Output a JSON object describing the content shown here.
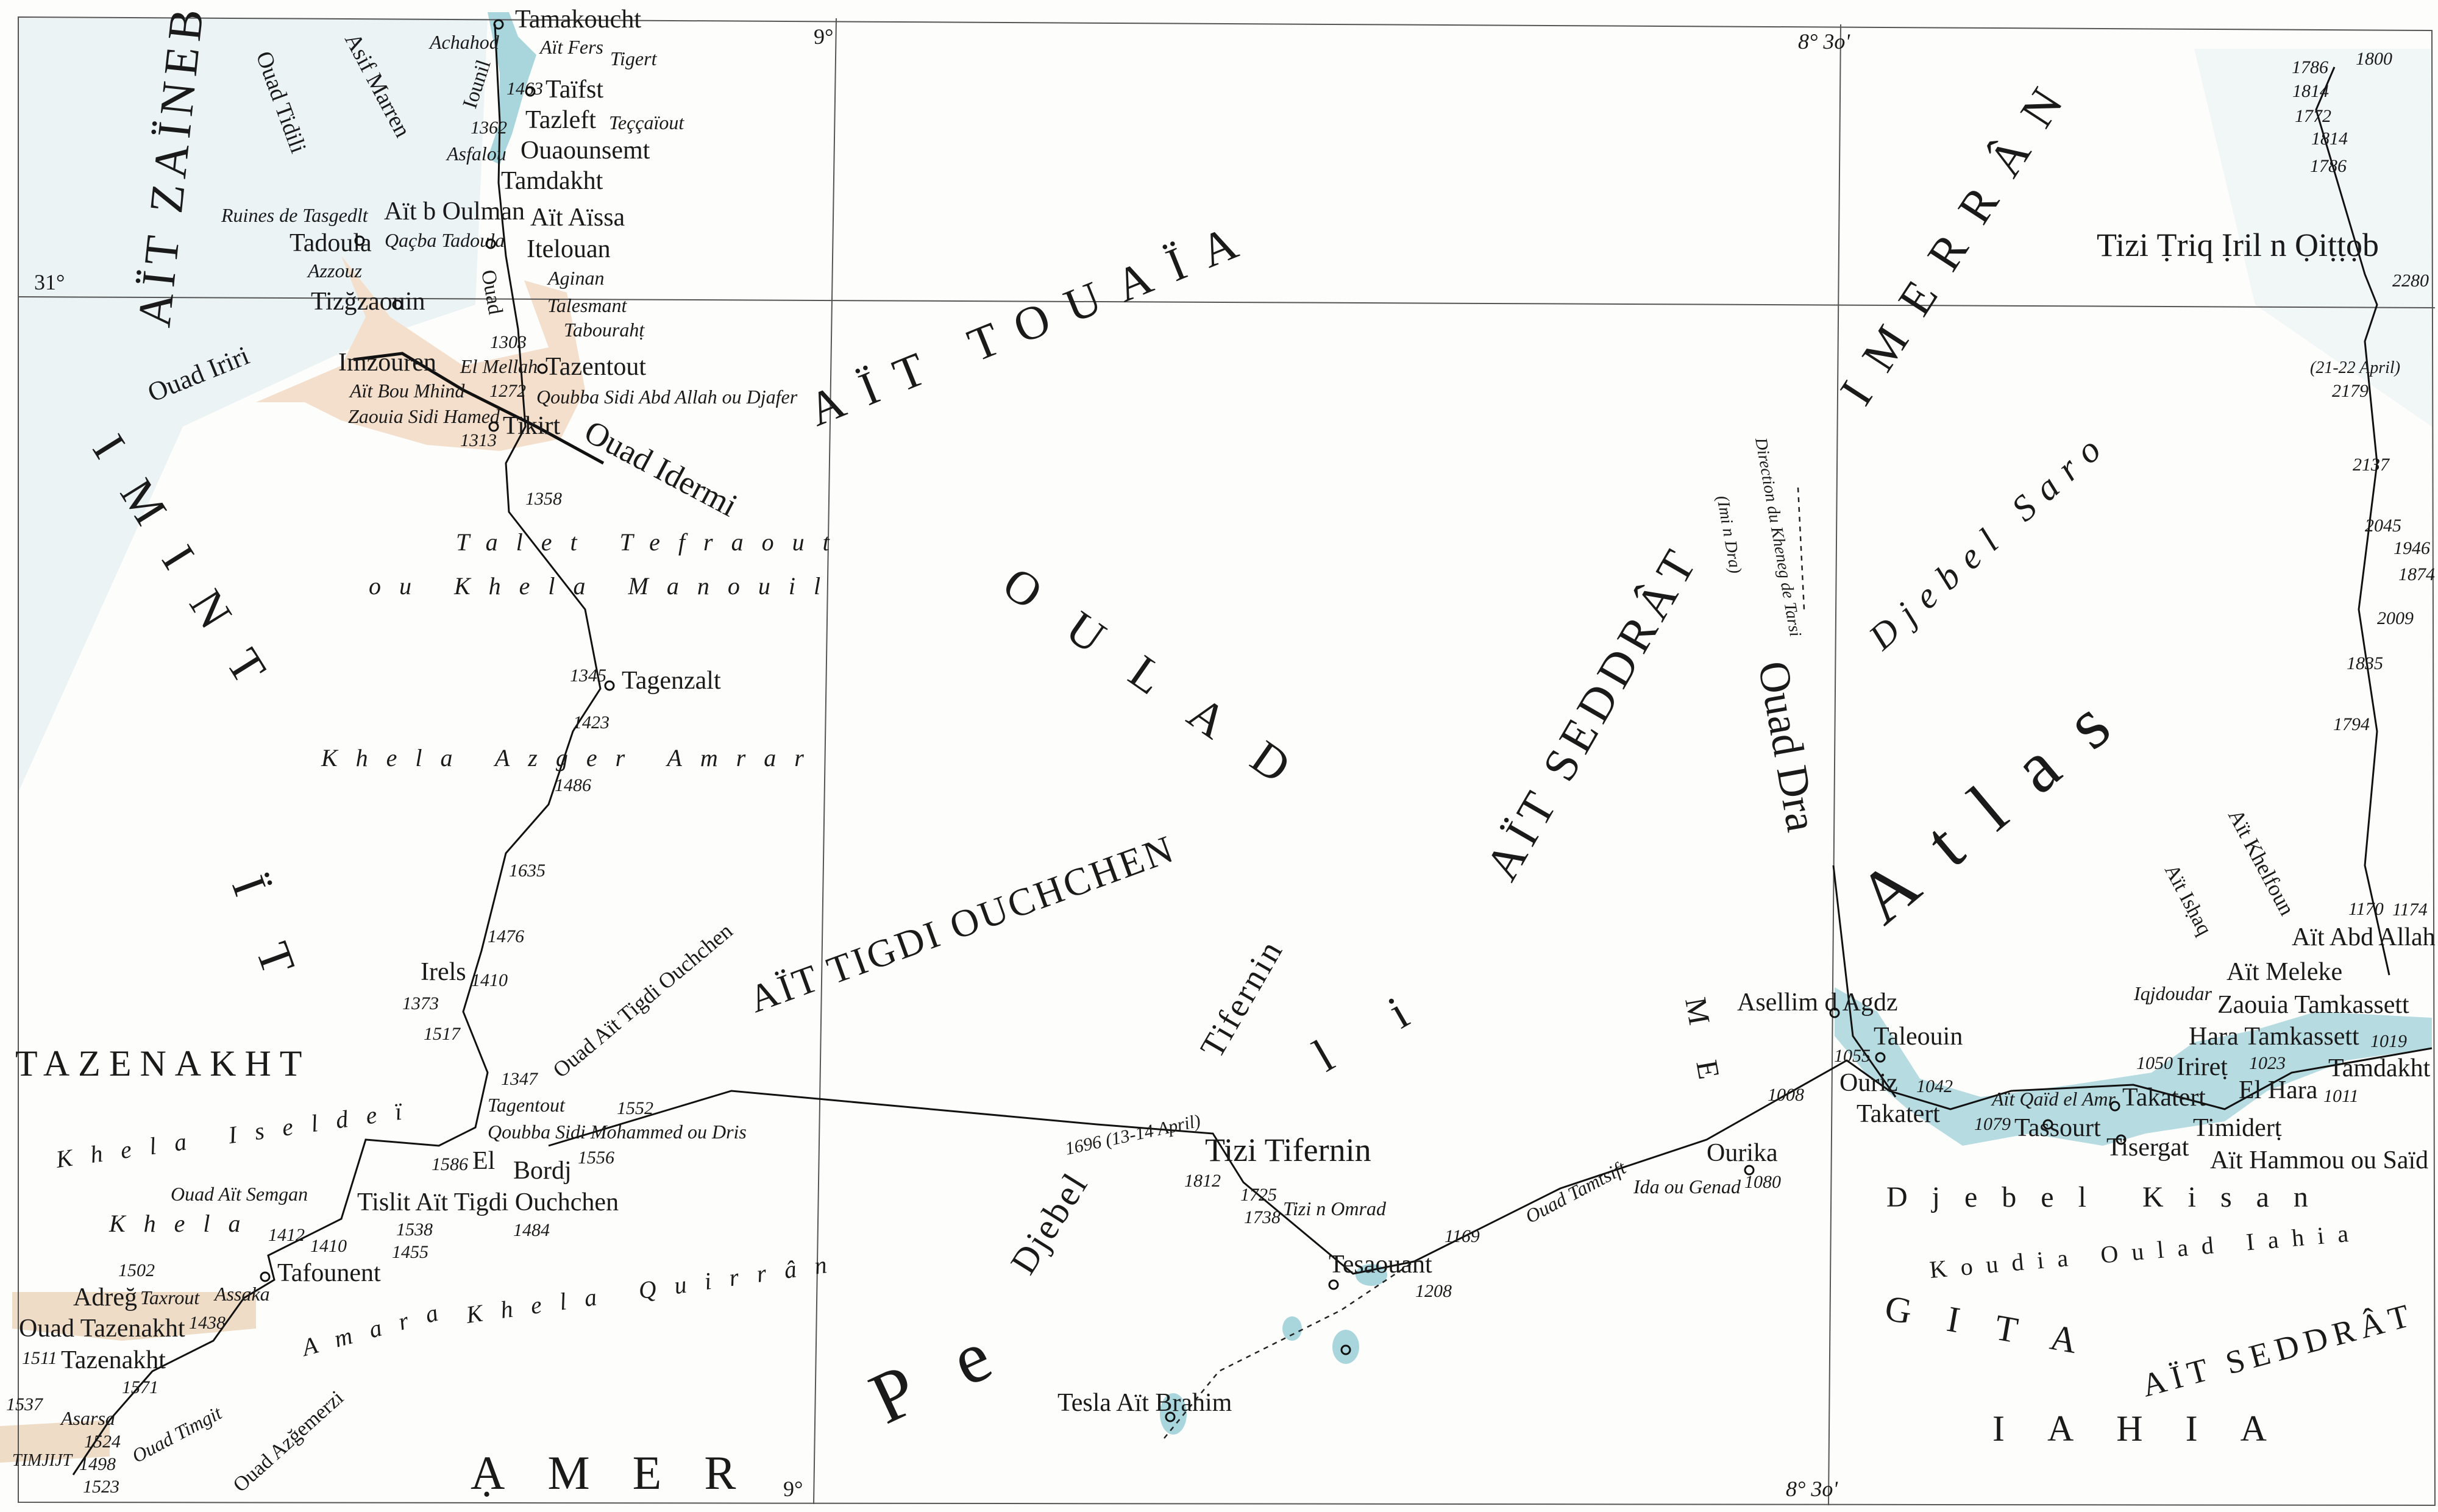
{
  "colors": {
    "paper": "#fdfdfb",
    "ink": "#1a1a1a",
    "water": "#a9d6dd",
    "highland_shade": "#e6f0f4",
    "cultivated": "#f3dfcb",
    "grid": "#555555"
  },
  "grid_labels": [
    "31°",
    "9°",
    "9°",
    "8° 3o'",
    "8° 3o'"
  ],
  "places": [
    "Tamakoucht",
    "Taïfst",
    "Tazleft",
    "Ouaounsemt",
    "Tamdakht",
    "Aït b Oulman",
    "Aït Aïssa",
    "Itelouan",
    "Tadoula",
    "Tizğzaouin",
    "Imzouren",
    "Tazentout",
    "Tikirt",
    "Tagenzalt",
    "Irels",
    "Bordj",
    "El",
    "Tislit Aït Tigdi Ouchchen",
    "Tafounent",
    "Adreğ",
    "Ouad Tazenakht",
    "Tazenakht",
    "Tizi Tifernin",
    "Tesaouant",
    "Tesla Aït Brahim",
    "Ourika",
    "Asellim d Agdz",
    "Taleouin",
    "Ouriz",
    "Takatert",
    "Takatert",
    "Tassourt",
    "Tisergat",
    "Timiderṭ",
    "Irireṭ",
    "El Hara",
    "Aït Hammou ou Saïd",
    "Hara Tamkassett",
    "Zaouia Tamkassett",
    "Aït Meleke",
    "Aït Abd Allah",
    "Tamdakht",
    "Tizi Ṭriq Ịril n Ọiṭṭọb",
    "TIMJIJT"
  ],
  "minor_places": [
    "Aït Fers",
    "Tigert",
    "Teççaïout",
    "Asfalou",
    "Ruines de Tasgedlt",
    "Qaçba Tadoula",
    "Azzouz",
    "Aginan",
    "Talesmant",
    "Tabourahṭ",
    "Qoubba Sidi Abd Allah ou Djafer",
    "Aït Bou Mhind",
    "El Mellah",
    "Zaouia Sidi Hamed",
    "Achahod",
    "Qoubba Sidi Mohammed ou Dris",
    "Tagentout",
    "Ouad Aït Semgan",
    "Taxrout",
    "Assaka",
    "Asarsa",
    "Tizi n Omrad",
    "Ida ou Genad",
    "Aït Qaïd el Amr",
    "Iqjdoudar",
    "(21-22 April)"
  ],
  "elevations": [
    "1463",
    "1362",
    "1303",
    "1272",
    "1313",
    "1358",
    "1345",
    "1423",
    "1486",
    "1635",
    "1476",
    "1410",
    "1373",
    "1517",
    "1347",
    "1552",
    "1556",
    "1484",
    "1586",
    "1538",
    "1455",
    "1412",
    "1410",
    "1502",
    "1438",
    "1511",
    "1571",
    "1537",
    "1524",
    "1498",
    "1523",
    "1696 (13-14 April)",
    "1812",
    "1725",
    "1738",
    "1208",
    "1169",
    "1080",
    "1008",
    "1055",
    "1042",
    "1079",
    "1050",
    "1023",
    "1011",
    "1019",
    "1800",
    "1786",
    "1814",
    "1772",
    "1814",
    "1786",
    "2280",
    "2179",
    "2137",
    "2045",
    "1946",
    "1874",
    "2009",
    "1835",
    "1794",
    "1174",
    "1170"
  ],
  "regions": [
    "I M I N T",
    "AÏT TOUAÏA",
    "AÏT ZAÏNEB",
    "Talet Tefraout",
    "ou Khela Manouil",
    "Khela Azger Amrar",
    "Khela Quirrân",
    "Khela Iseldeï",
    "Amara",
    "Khela",
    "AÏT TIGDI OUCHCHEN",
    "TAZENAKHT",
    "ẠMER",
    "IMERRÂN",
    "Djebel Saro",
    "Atlas",
    "AÏT SEDDRÂT",
    "Djebel Kisan",
    "Koudia Oulad Iahia",
    "AÏT SEDDRÂT",
    "IAHIA",
    "GITA",
    "Djebel",
    "Tifernin",
    "Pe",
    "OULAD",
    "li",
    "ME",
    "ÏT"
  ],
  "rivers": [
    "Ouad Idermi",
    "Ouad Iriri",
    "Ouad Tidili",
    "Asif Marren",
    "Ouad Aït Tigdi Ouchchen",
    "Ouad Dra",
    "Direction du Kheneg de Tarsi",
    "(Imi n Dra)",
    "Ouad Tamtsift",
    "Ouad Timgit",
    "Ouad Azğemerzi",
    "Aït Khelfoun",
    "Aït Isḥaq",
    "Iounil",
    "Ouad"
  ]
}
